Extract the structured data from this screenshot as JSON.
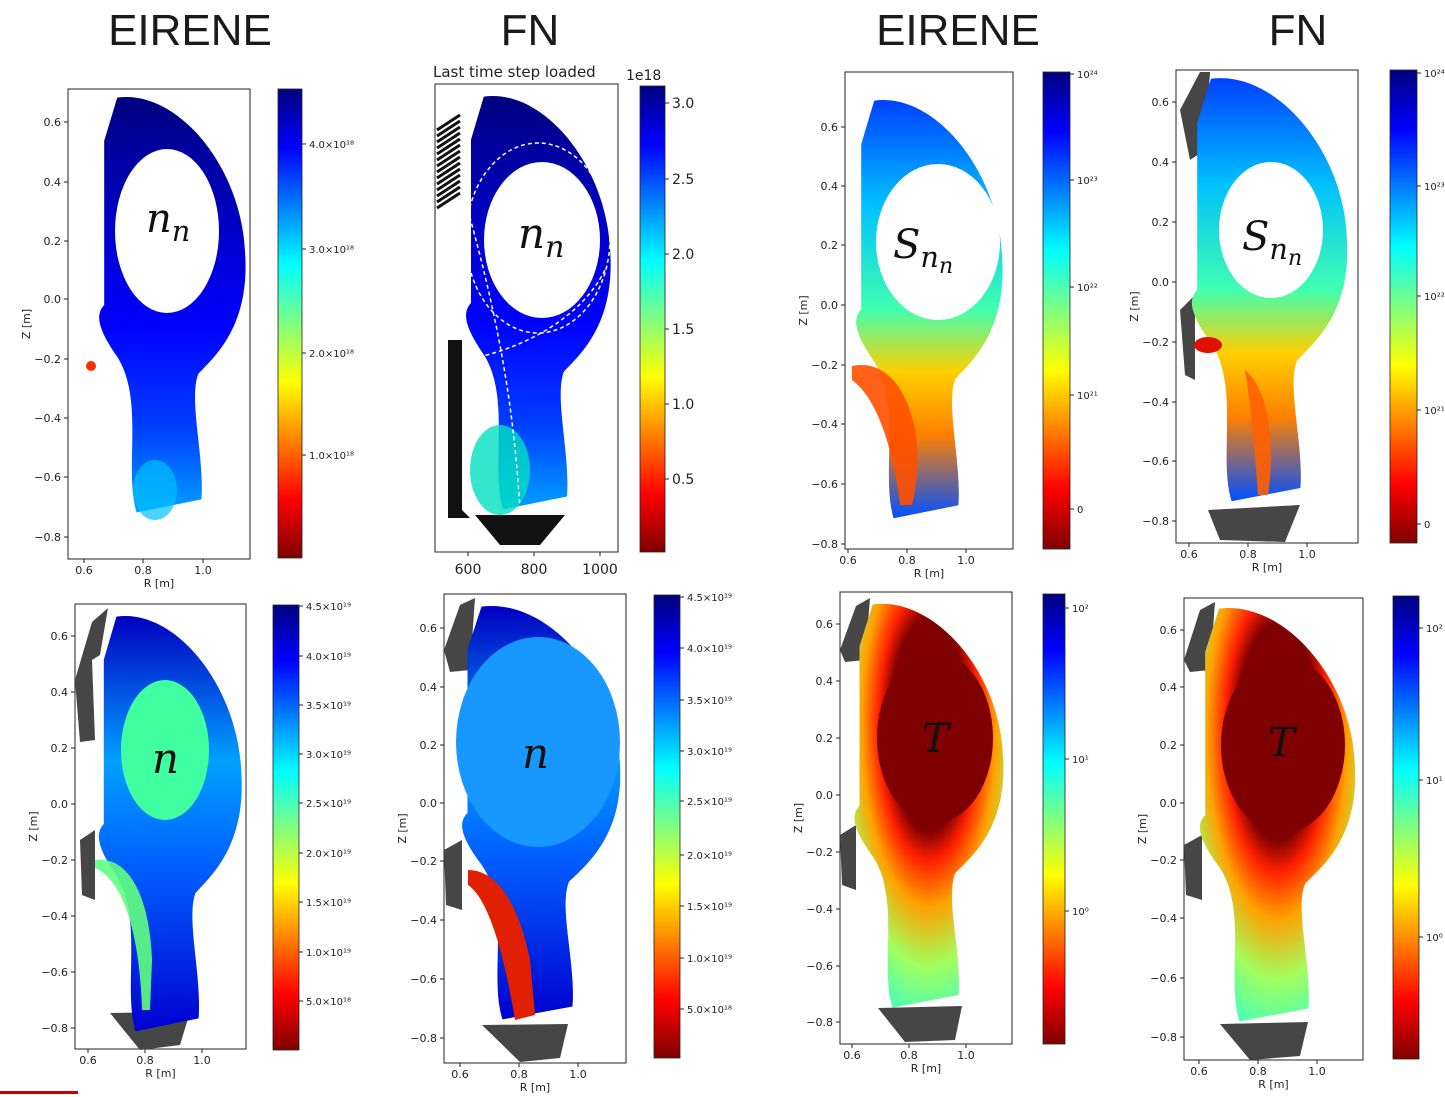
{
  "headers": [
    "EIRENE",
    "FN",
    "EIRENE",
    "FN"
  ],
  "fn_top_title": "Last time step loaded",
  "fn_top_exponent": "1e18",
  "cmap_stops": [
    "#00007f",
    "#0000ff",
    "#0080ff",
    "#00ffff",
    "#80ff80",
    "#ffff00",
    "#ff8000",
    "#ff0000",
    "#7f0000"
  ],
  "gray_color": "#464646",
  "panels": [
    {
      "variable": "n_n",
      "var_main": "n",
      "var_sub": "n",
      "xlabel": "R [m]",
      "ylabel": "Z [m]",
      "xticks": [
        "0.6",
        "0.8",
        "1.0"
      ],
      "yticks": [
        "0.6",
        "0.4",
        "0.2",
        "0.0",
        "−0.2",
        "−0.4",
        "−0.6",
        "−0.8"
      ],
      "cbar_ticks": [
        "4.0×10¹⁸",
        "3.0×10¹⁸",
        "2.0×10¹⁸",
        "1.0×10¹⁸"
      ]
    },
    {
      "variable": "n_n",
      "var_main": "n",
      "var_sub": "n",
      "xticks": [
        "600",
        "800",
        "1000"
      ],
      "cbar_ticks": [
        "3.0",
        "2.5",
        "2.0",
        "1.5",
        "1.0",
        "0.5"
      ]
    },
    {
      "variable": "S_n_n",
      "var_main": "S",
      "var_sub": "n",
      "xlabel": "R [m]",
      "ylabel": "Z [m]",
      "xticks": [
        "0.6",
        "0.8",
        "1.0"
      ],
      "yticks": [
        "0.6",
        "0.4",
        "0.2",
        "0.0",
        "−0.2",
        "−0.4",
        "−0.6",
        "−0.8"
      ],
      "cbar_ticks": [
        "10²⁴",
        "10²³",
        "10²²",
        "10²¹",
        "0"
      ]
    },
    {
      "variable": "S_n_n",
      "var_main": "S",
      "var_sub": "n",
      "xlabel": "R [m]",
      "ylabel": "Z [m]",
      "xticks": [
        "0.6",
        "0.8",
        "1.0"
      ],
      "yticks": [
        "0.6",
        "0.4",
        "0.2",
        "0.0",
        "−0.2",
        "−0.4",
        "−0.6",
        "−0.8"
      ],
      "cbar_ticks": [
        "10²⁴",
        "10²³",
        "10²²",
        "10²¹",
        "0"
      ]
    },
    {
      "variable": "n",
      "var_main": "n",
      "xlabel": "R [m]",
      "ylabel": "Z [m]",
      "xticks": [
        "0.6",
        "0.8",
        "1.0"
      ],
      "yticks": [
        "0.6",
        "0.4",
        "0.2",
        "0.0",
        "−0.2",
        "−0.4",
        "−0.6",
        "−0.8"
      ],
      "cbar_ticks": [
        "4.5×10¹⁹",
        "4.0×10¹⁹",
        "3.5×10¹⁹",
        "3.0×10¹⁹",
        "2.5×10¹⁹",
        "2.0×10¹⁹",
        "1.5×10¹⁹",
        "1.0×10¹⁹",
        "5.0×10¹⁸"
      ]
    },
    {
      "variable": "n",
      "var_main": "n",
      "xlabel": "R [m]",
      "ylabel": "Z [m]",
      "xticks": [
        "0.6",
        "0.8",
        "1.0"
      ],
      "yticks": [
        "0.6",
        "0.4",
        "0.2",
        "0.0",
        "−0.2",
        "−0.4",
        "−0.6",
        "−0.8"
      ],
      "cbar_ticks": [
        "4.5×10¹⁹",
        "4.0×10¹⁹",
        "3.5×10¹⁹",
        "3.0×10¹⁹",
        "2.5×10¹⁹",
        "2.0×10¹⁹",
        "1.5×10¹⁹",
        "1.0×10¹⁹",
        "5.0×10¹⁸"
      ]
    },
    {
      "variable": "T",
      "var_main": "T",
      "xlabel": "R [m]",
      "ylabel": "Z [m]",
      "xticks": [
        "0.6",
        "0.8",
        "1.0"
      ],
      "yticks": [
        "0.6",
        "0.4",
        "0.2",
        "0.0",
        "−0.2",
        "−0.4",
        "−0.6",
        "−0.8"
      ],
      "cbar_ticks": [
        "10²",
        "10¹",
        "10⁰"
      ]
    },
    {
      "variable": "T",
      "var_main": "T",
      "xlabel": "R [m]",
      "ylabel": "Z [m]",
      "xticks": [
        "0.6",
        "0.8",
        "1.0"
      ],
      "yticks": [
        "0.6",
        "0.4",
        "0.2",
        "0.0",
        "−0.2",
        "−0.4",
        "−0.6",
        "−0.8"
      ],
      "cbar_ticks": [
        "10²",
        "10¹",
        "10⁰"
      ]
    }
  ],
  "chart_data": [
    {
      "type": "heatmap",
      "label": "EIRENE n_n",
      "xlabel": "R [m]",
      "ylabel": "Z [m]",
      "xlim": [
        0.55,
        1.15
      ],
      "ylim": [
        -0.85,
        0.72
      ],
      "colorbar_range": [
        0,
        4.6e+18
      ],
      "colorbar_ticks": [
        4e+18,
        3e+18,
        2e+18,
        1e+18
      ]
    },
    {
      "type": "heatmap",
      "label": "FN n_n",
      "title": "Last time step loaded",
      "colorbar_exponent": "1e18",
      "xticks": [
        600,
        800,
        1000
      ],
      "colorbar_ticks": [
        3.0,
        2.5,
        2.0,
        1.5,
        1.0,
        0.5
      ]
    },
    {
      "type": "heatmap",
      "label": "EIRENE S_n_n",
      "xlabel": "R [m]",
      "ylabel": "Z [m]",
      "xlim": [
        0.6,
        1.16
      ],
      "ylim": [
        -0.82,
        0.77
      ],
      "colorbar_scale": "symlog",
      "colorbar_ticks": [
        "1e24",
        "1e23",
        "1e22",
        "1e21",
        "0"
      ]
    },
    {
      "type": "heatmap",
      "label": "FN S_n_n",
      "xlabel": "R [m]",
      "ylabel": "Z [m]",
      "xlim": [
        0.56,
        1.16
      ],
      "ylim": [
        -0.87,
        0.72
      ],
      "colorbar_scale": "symlog",
      "colorbar_ticks": [
        "1e24",
        "1e23",
        "1e22",
        "1e21",
        "0"
      ]
    },
    {
      "type": "heatmap",
      "label": "EIRENE n",
      "xlabel": "R [m]",
      "ylabel": "Z [m]",
      "xlim": [
        0.55,
        1.15
      ],
      "ylim": [
        -0.86,
        0.72
      ],
      "colorbar_range": [
        1e+18,
        4.5e+19
      ],
      "colorbar_ticks": [
        4.5e+19,
        4e+19,
        3.5e+19,
        3e+19,
        2.5e+19,
        2e+19,
        1.5e+19,
        1e+19,
        5e+18
      ]
    },
    {
      "type": "heatmap",
      "label": "FN n",
      "xlabel": "R [m]",
      "ylabel": "Z [m]",
      "xlim": [
        0.55,
        1.15
      ],
      "ylim": [
        -0.87,
        0.72
      ],
      "colorbar_range": [
        1e+18,
        4.5e+19
      ],
      "colorbar_ticks": [
        4.5e+19,
        4e+19,
        3.5e+19,
        3e+19,
        2.5e+19,
        2e+19,
        1.5e+19,
        1e+19,
        5e+18
      ]
    },
    {
      "type": "heatmap",
      "label": "EIRENE T",
      "xlabel": "R [m]",
      "ylabel": "Z [m]",
      "xlim": [
        0.55,
        1.15
      ],
      "ylim": [
        -0.87,
        0.72
      ],
      "colorbar_scale": "log",
      "colorbar_ticks": [
        "1e2",
        "1e1",
        "1e0"
      ]
    },
    {
      "type": "heatmap",
      "label": "FN T",
      "xlabel": "R [m]",
      "ylabel": "Z [m]",
      "xlim": [
        0.55,
        1.15
      ],
      "ylim": [
        -0.87,
        0.72
      ],
      "colorbar_scale": "log",
      "colorbar_ticks": [
        "1e2",
        "1e1",
        "1e0"
      ]
    }
  ]
}
